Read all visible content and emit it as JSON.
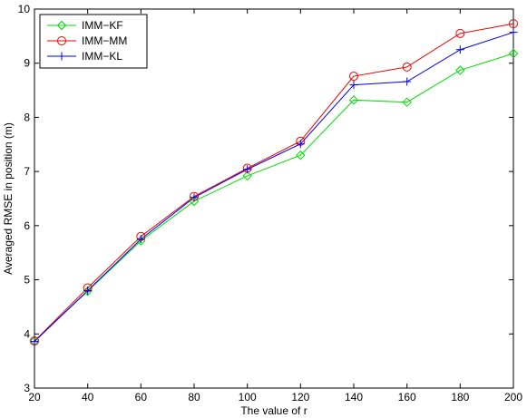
{
  "chart_data": {
    "type": "line",
    "xlabel": "The value of r",
    "ylabel": "Averaged RMSE in position (m)",
    "xlim": [
      20,
      200
    ],
    "ylim": [
      3,
      10
    ],
    "xticks": [
      20,
      40,
      60,
      80,
      100,
      120,
      140,
      160,
      180,
      200
    ],
    "yticks": [
      3,
      4,
      5,
      6,
      7,
      8,
      9,
      10
    ],
    "grid": false,
    "legend_position": "top-left",
    "x": [
      20,
      40,
      60,
      80,
      100,
      120,
      140,
      160,
      180,
      200
    ],
    "series": [
      {
        "name": "IMM−KF",
        "color": "#00dd00",
        "marker": "diamond",
        "values": [
          3.87,
          4.79,
          5.72,
          6.45,
          6.92,
          7.3,
          8.32,
          8.28,
          8.87,
          9.18
        ]
      },
      {
        "name": "IMM−MM",
        "color": "#ee0000",
        "marker": "circle",
        "values": [
          3.87,
          4.85,
          5.8,
          6.54,
          7.06,
          7.56,
          8.76,
          8.93,
          9.55,
          9.73
        ]
      },
      {
        "name": "IMM−KL",
        "color": "#0000ee",
        "marker": "plus",
        "values": [
          3.86,
          4.8,
          5.75,
          6.52,
          7.04,
          7.51,
          8.6,
          8.66,
          9.25,
          9.57
        ]
      }
    ]
  }
}
